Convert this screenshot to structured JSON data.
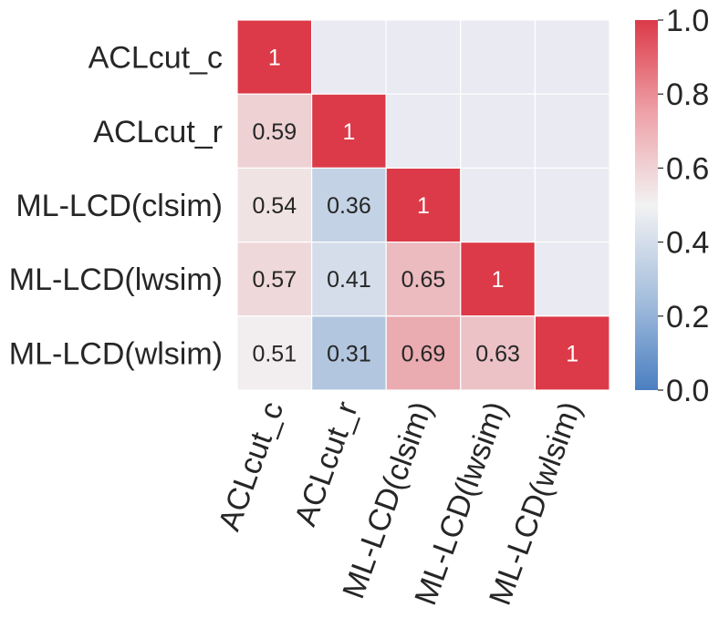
{
  "chart_data": {
    "type": "heatmap",
    "rows": [
      "ACLcut_c",
      "ACLcut_r",
      "ML-LCD(clsim)",
      "ML-LCD(lwsim)",
      "ML-LCD(wlsim)"
    ],
    "cols": [
      "ACLcut_c",
      "ACLcut_r",
      "ML-LCD(clsim)",
      "ML-LCD(lwsim)",
      "ML-LCD(wlsim)"
    ],
    "values": [
      [
        1,
        null,
        null,
        null,
        null
      ],
      [
        0.59,
        1,
        null,
        null,
        null
      ],
      [
        0.54,
        0.36,
        1,
        null,
        null
      ],
      [
        0.57,
        0.41,
        0.65,
        1,
        null
      ],
      [
        0.51,
        0.31,
        0.69,
        0.63,
        1
      ]
    ],
    "value_labels": [
      [
        "1",
        "",
        "",
        "",
        ""
      ],
      [
        "0.59",
        "1",
        "",
        "",
        ""
      ],
      [
        "0.54",
        "0.36",
        "1",
        "",
        ""
      ],
      [
        "0.57",
        "0.41",
        "0.65",
        "1",
        ""
      ],
      [
        "0.51",
        "0.31",
        "0.69",
        "0.63",
        "1"
      ]
    ],
    "masked": "upper triangle",
    "colorbar": {
      "range": [
        0.0,
        1.0
      ],
      "ticks": [
        "0.0",
        "0.2",
        "0.4",
        "0.6",
        "0.8",
        "1.0"
      ],
      "colormap": "diverging blue-white-red",
      "colors": {
        "low": "#4a7fc1",
        "mid": "#f2f2f2",
        "high": "#dc3a48"
      }
    },
    "masked_color": "#eaeaf2",
    "grid_color": "#ffffff",
    "x_tick_rotation": "70 degrees"
  }
}
